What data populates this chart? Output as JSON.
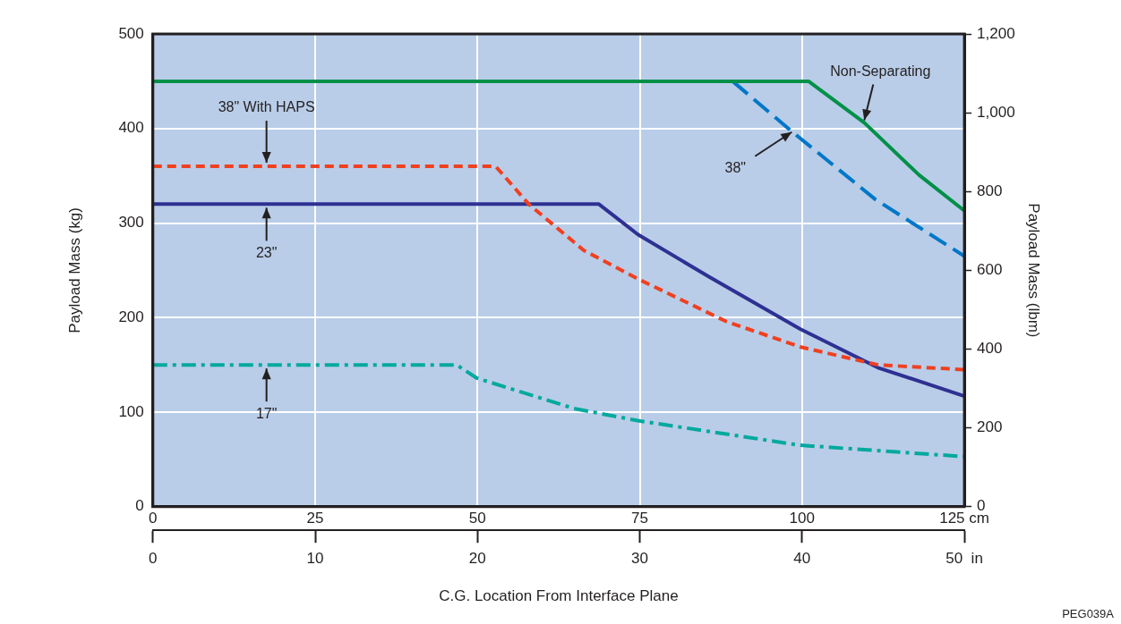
{
  "chart_data": {
    "type": "line",
    "xlabel": "C.G. Location From Interface Plane",
    "ylabel": "Payload Mass (kg)",
    "y2label": "Payload Mass (lbm)",
    "xlim": [
      0,
      125
    ],
    "xticks": [
      0,
      25,
      50,
      75,
      100,
      {
        "value": 125,
        "label": "125 cm"
      }
    ],
    "x2lim": [
      0,
      50
    ],
    "x2ticks": [
      0,
      10,
      20,
      30,
      40,
      {
        "value": 50,
        "label": "50  in"
      }
    ],
    "ylim": [
      0,
      500
    ],
    "yticks": [
      0,
      100,
      200,
      300,
      400,
      500
    ],
    "y2lim": [
      0,
      1200
    ],
    "y2ticks": [
      0,
      200,
      400,
      600,
      800,
      {
        "value": 1000,
        "label": "1,000"
      },
      {
        "value": 1200,
        "label": "1,200"
      }
    ],
    "grid": true,
    "legend": false,
    "marker": "none",
    "series": [
      {
        "color": "#009048",
        "line_style": "solid",
        "x": [
          0,
          101,
          109.6,
          118,
          125
        ],
        "values": [
          450,
          450,
          406,
          351,
          313
        ]
      },
      {
        "color": "#0077c8",
        "line_style": "dashed",
        "x": [
          89.3,
          98.4,
          111.3,
          125
        ],
        "values": [
          450,
          397,
          325,
          265
        ]
      },
      {
        "color": "#f04020",
        "line_style": "dashed",
        "x": [
          0,
          52.8,
          57.9,
          66.4,
          74.7,
          88.3,
          99.7,
          111.7,
          125
        ],
        "values": [
          360,
          360,
          320,
          271,
          241,
          196,
          169,
          150,
          145
        ]
      },
      {
        "color": "#2e3192",
        "line_style": "solid",
        "x": [
          0,
          68.7,
          74.7,
          85.7,
          99.7,
          111.7,
          125
        ],
        "values": [
          320,
          320,
          288,
          243,
          188,
          147,
          117
        ]
      },
      {
        "color": "#00a99d",
        "line_style": "dashed",
        "x": [
          0,
          46.8,
          49.9,
          64.8,
          74.7,
          99.7,
          125
        ],
        "values": [
          150,
          150,
          136,
          104,
          91,
          65,
          53
        ]
      }
    ],
    "annotations": [
      {
        "text": "38\" With HAPS",
        "x": 17.5,
        "y": 360
      },
      {
        "text": "23\"",
        "x": 17.5,
        "y": 320
      },
      {
        "text": "17\"",
        "x": 17.5,
        "y": 150
      },
      {
        "text": "38\"",
        "x": 98,
        "y": 400
      },
      {
        "text": "Non-Separating",
        "x": 110,
        "y": 405
      },
      "PEG039A"
    ]
  }
}
